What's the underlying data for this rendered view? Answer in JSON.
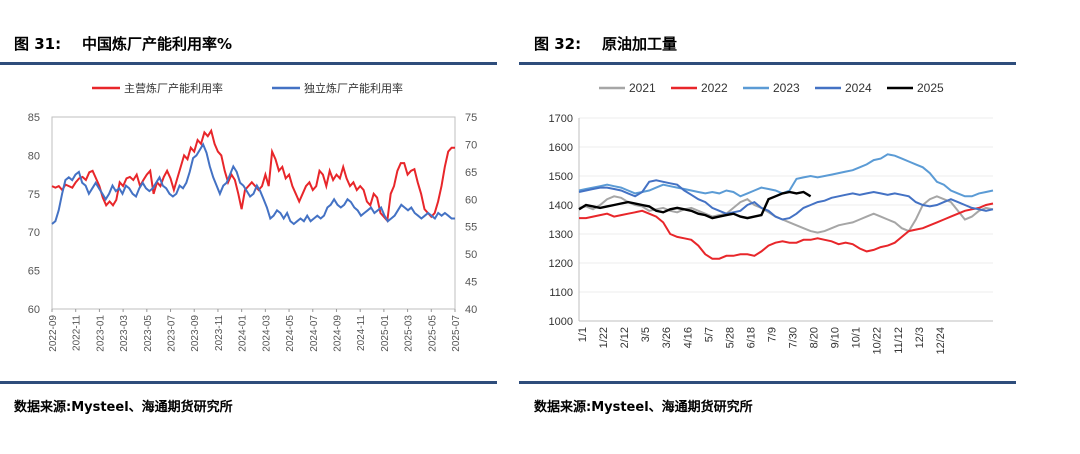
{
  "figures": [
    {
      "title": "图 31:    中国炼厂产能利用率%",
      "source": "数据来源:Mysteel、海通期货研究所"
    },
    {
      "title": "图 32:    原油加工量",
      "source": "数据来源:Mysteel、海通期货研究所"
    }
  ],
  "colors": {
    "rule": "#2e4d7b",
    "red": "#e8262a",
    "blue": "#4472c4",
    "gray": "#a6a6a6",
    "lightblue": "#5b9bd5",
    "black": "#000000"
  },
  "chart_data": [
    {
      "type": "line",
      "title": "中国炼厂产能利用率%",
      "x_labels": [
        "2022-09",
        "2022-11",
        "2023-01",
        "2023-03",
        "2023-05",
        "2023-07",
        "2023-09",
        "2023-11",
        "2024-01",
        "2024-03",
        "2024-05",
        "2024-07",
        "2024-09",
        "2024-11",
        "2025-01",
        "2025-03",
        "2025-05",
        "2025-07"
      ],
      "y_left": {
        "min": 60,
        "max": 85,
        "ticks": [
          60,
          65,
          70,
          75,
          80,
          85
        ]
      },
      "y_right": {
        "min": 40,
        "max": 75,
        "ticks": [
          40,
          45,
          50,
          55,
          60,
          65,
          70,
          75
        ]
      },
      "series": [
        {
          "name": "主营炼厂产能利用率",
          "axis": "left",
          "color": "#e8262a",
          "values": [
            76,
            75.8,
            76,
            75.5,
            76.2,
            76,
            75.8,
            76.5,
            77,
            77.2,
            76.8,
            77.8,
            78,
            77,
            76,
            74.5,
            73.5,
            74,
            73.5,
            74.2,
            76.5,
            76,
            77,
            77.2,
            76.8,
            77.5,
            76,
            76.8,
            77.5,
            78,
            75,
            76.5,
            76,
            77.2,
            78,
            77,
            75.5,
            77,
            78.5,
            80,
            79.5,
            81,
            80.5,
            82,
            81.5,
            83,
            82.5,
            83.2,
            81.5,
            80.5,
            80,
            78,
            76.5,
            77.5,
            76.8,
            75,
            73,
            75.5,
            76,
            76.5,
            76,
            75.5,
            76,
            77.5,
            76,
            80.5,
            79.5,
            78,
            78.5,
            77,
            77.5,
            76,
            75,
            74,
            75,
            76,
            76.5,
            75.5,
            76,
            78,
            77.5,
            76,
            78,
            76.8,
            77.5,
            77,
            78.5,
            77,
            76,
            76.5,
            75.5,
            76,
            75.5,
            74,
            73.5,
            75,
            74.5,
            72.5,
            72,
            71.5,
            75,
            76,
            78,
            79,
            79,
            77.5,
            78,
            78.2,
            76.5,
            75,
            73,
            72.5,
            72,
            72.5,
            74,
            76,
            78.5,
            80.5,
            81,
            81
          ]
        },
        {
          "name": "独立炼厂产能利用率",
          "axis": "right",
          "color": "#4472c4",
          "values": [
            55.5,
            56,
            58,
            61,
            63.5,
            64,
            63.5,
            64.5,
            65,
            63,
            62.5,
            61,
            62,
            63,
            62,
            61,
            60,
            61,
            62.5,
            61.5,
            62,
            61,
            62.5,
            62,
            61,
            60.5,
            62,
            63,
            62,
            61.5,
            62,
            63,
            64,
            62.5,
            62,
            61,
            60.5,
            61,
            62.5,
            62,
            63,
            65,
            67.5,
            68,
            69,
            70,
            68.5,
            66,
            64,
            62.5,
            61,
            62.5,
            63,
            64.5,
            66,
            65,
            63,
            62.5,
            61.5,
            60.5,
            61,
            62.5,
            61.5,
            60,
            58.5,
            56.5,
            57,
            58,
            57.5,
            56.5,
            57.5,
            56,
            55.5,
            56,
            56.5,
            56,
            57,
            56,
            56.5,
            57,
            56.5,
            57,
            58.5,
            59,
            60,
            59,
            58.5,
            59,
            60,
            59.5,
            58.5,
            58,
            57,
            57.5,
            58,
            58.5,
            57.5,
            58,
            58.5,
            57,
            56,
            56.5,
            57,
            58,
            59,
            58.5,
            58,
            58.5,
            57.5,
            57,
            56.5,
            57,
            57.5,
            57,
            56.5,
            57.5,
            57,
            57.5,
            57,
            56.5,
            56.5
          ]
        }
      ]
    },
    {
      "type": "line",
      "title": "原油加工量",
      "x_labels": [
        "1/1",
        "1/22",
        "2/12",
        "3/5",
        "3/26",
        "4/16",
        "5/7",
        "5/28",
        "6/18",
        "7/9",
        "7/30",
        "8/20",
        "9/10",
        "10/1",
        "10/22",
        "11/12",
        "12/3",
        "12/24"
      ],
      "y": {
        "min": 1000,
        "max": 1700,
        "ticks": [
          1000,
          1100,
          1200,
          1300,
          1400,
          1500,
          1600,
          1700
        ]
      },
      "series": [
        {
          "name": "2021",
          "color": "#a6a6a6",
          "values": [
            1390,
            1395,
            1385,
            1400,
            1420,
            1430,
            1425,
            1410,
            1400,
            1395,
            1380,
            1385,
            1390,
            1380,
            1375,
            1385,
            1390,
            1380,
            1370,
            1360,
            1365,
            1370,
            1390,
            1410,
            1420,
            1400,
            1390,
            1375,
            1360,
            1350,
            1340,
            1330,
            1320,
            1310,
            1305,
            1310,
            1320,
            1330,
            1335,
            1340,
            1350,
            1360,
            1370,
            1360,
            1350,
            1340,
            1320,
            1310,
            1350,
            1400,
            1420,
            1430,
            1420,
            1410,
            1380,
            1350,
            1360,
            1380,
            1390,
            1385
          ]
        },
        {
          "name": "2022",
          "color": "#e8262a",
          "values": [
            1355,
            1355,
            1360,
            1365,
            1370,
            1360,
            1365,
            1370,
            1375,
            1380,
            1370,
            1360,
            1340,
            1300,
            1290,
            1285,
            1280,
            1260,
            1230,
            1215,
            1215,
            1225,
            1225,
            1230,
            1230,
            1225,
            1240,
            1260,
            1270,
            1275,
            1270,
            1270,
            1280,
            1280,
            1285,
            1280,
            1275,
            1265,
            1270,
            1265,
            1250,
            1240,
            1245,
            1255,
            1260,
            1270,
            1290,
            1310,
            1315,
            1320,
            1330,
            1340,
            1350,
            1360,
            1370,
            1380,
            1385,
            1390,
            1400,
            1405
          ]
        },
        {
          "name": "2023",
          "color": "#5b9bd5",
          "values": [
            1450,
            1455,
            1460,
            1465,
            1470,
            1465,
            1460,
            1450,
            1440,
            1445,
            1450,
            1460,
            1470,
            1465,
            1460,
            1455,
            1450,
            1445,
            1440,
            1445,
            1440,
            1450,
            1445,
            1430,
            1440,
            1450,
            1460,
            1455,
            1450,
            1440,
            1450,
            1490,
            1495,
            1500,
            1495,
            1500,
            1505,
            1510,
            1515,
            1520,
            1530,
            1540,
            1555,
            1560,
            1575,
            1570,
            1560,
            1550,
            1540,
            1530,
            1510,
            1480,
            1470,
            1450,
            1440,
            1430,
            1430,
            1440,
            1445,
            1450
          ]
        },
        {
          "name": "2024",
          "color": "#4472c4",
          "values": [
            1445,
            1450,
            1455,
            1460,
            1460,
            1455,
            1450,
            1440,
            1430,
            1445,
            1480,
            1485,
            1480,
            1475,
            1470,
            1450,
            1435,
            1420,
            1410,
            1390,
            1380,
            1370,
            1375,
            1380,
            1400,
            1410,
            1390,
            1380,
            1360,
            1350,
            1355,
            1370,
            1390,
            1400,
            1410,
            1415,
            1425,
            1430,
            1435,
            1440,
            1435,
            1440,
            1445,
            1440,
            1435,
            1440,
            1435,
            1430,
            1410,
            1400,
            1395,
            1400,
            1410,
            1420,
            1410,
            1400,
            1390,
            1385,
            1380,
            1385
          ]
        },
        {
          "name": "2025",
          "color": "#000000",
          "values": [
            1385,
            1400,
            1395,
            1390,
            1395,
            1400,
            1405,
            1410,
            1405,
            1400,
            1395,
            1380,
            1375,
            1385,
            1390,
            1385,
            1380,
            1370,
            1365,
            1355,
            1360,
            1365,
            1370,
            1360,
            1355,
            1360,
            1365,
            1420,
            1430,
            1440,
            1445,
            1440,
            1445,
            1430
          ]
        }
      ]
    }
  ]
}
